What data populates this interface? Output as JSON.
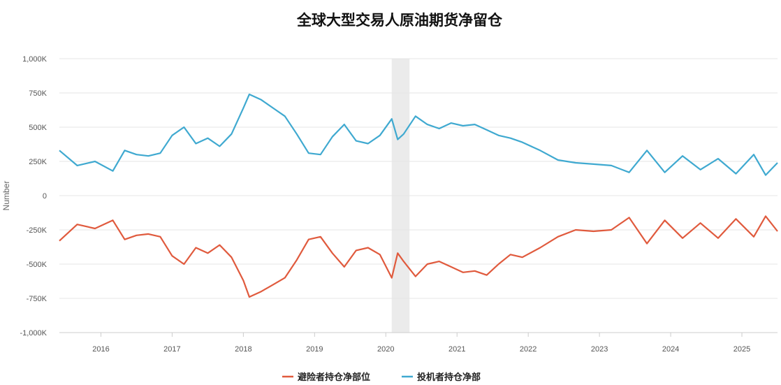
{
  "chart_data": {
    "type": "line",
    "title": "全球大型交易人原油期货净留仓",
    "ylabel": "Number",
    "xlabel": "",
    "ylim": [
      -1000000,
      1000000
    ],
    "xlim": [
      "2015-06",
      "2025-07"
    ],
    "y_ticks": [
      -1000000,
      -750000,
      -500000,
      -250000,
      0,
      250000,
      500000,
      750000,
      1000000
    ],
    "y_tick_labels": [
      "-1,000K",
      "-750K",
      "-500K",
      "-250K",
      "0",
      "250K",
      "500K",
      "750K",
      "1,000K"
    ],
    "x_ticks": [
      2016,
      2017,
      2018,
      2019,
      2020,
      2021,
      2022,
      2023,
      2024,
      2025
    ],
    "x_tick_labels": [
      "2016",
      "2017",
      "2018",
      "2019",
      "2020",
      "2021",
      "2022",
      "2023",
      "2024",
      "2025"
    ],
    "grid": "horizontal",
    "legend_position": "bottom-center",
    "shaded_period": [
      "2020-02",
      "2020-05"
    ],
    "series": [
      {
        "name": "避险者持仓净部位",
        "color": "#e05a3d",
        "x": [
          "2015-06",
          "2015-09",
          "2015-12",
          "2016-03",
          "2016-05",
          "2016-07",
          "2016-09",
          "2016-11",
          "2017-01",
          "2017-03",
          "2017-05",
          "2017-07",
          "2017-09",
          "2017-11",
          "2018-01",
          "2018-02",
          "2018-04",
          "2018-06",
          "2018-08",
          "2018-10",
          "2018-12",
          "2019-02",
          "2019-04",
          "2019-06",
          "2019-08",
          "2019-10",
          "2019-12",
          "2020-02",
          "2020-03",
          "2020-04",
          "2020-06",
          "2020-08",
          "2020-10",
          "2020-12",
          "2021-02",
          "2021-04",
          "2021-06",
          "2021-08",
          "2021-10",
          "2021-12",
          "2022-03",
          "2022-06",
          "2022-09",
          "2022-12",
          "2023-03",
          "2023-06",
          "2023-09",
          "2023-12",
          "2024-03",
          "2024-06",
          "2024-09",
          "2024-12",
          "2025-03",
          "2025-05",
          "2025-07"
        ],
        "values": [
          -330000,
          -210000,
          -240000,
          -180000,
          -320000,
          -290000,
          -280000,
          -300000,
          -440000,
          -500000,
          -380000,
          -420000,
          -360000,
          -450000,
          -620000,
          -740000,
          -700000,
          -650000,
          -600000,
          -470000,
          -320000,
          -300000,
          -420000,
          -520000,
          -400000,
          -380000,
          -430000,
          -600000,
          -420000,
          -480000,
          -590000,
          -500000,
          -480000,
          -520000,
          -560000,
          -550000,
          -580000,
          -500000,
          -430000,
          -450000,
          -380000,
          -300000,
          -250000,
          -260000,
          -250000,
          -160000,
          -350000,
          -180000,
          -310000,
          -200000,
          -310000,
          -170000,
          -300000,
          -150000,
          -260000
        ]
      },
      {
        "name": "投机者持仓净部",
        "color": "#3fa9d0",
        "x": [
          "2015-06",
          "2015-09",
          "2015-12",
          "2016-03",
          "2016-05",
          "2016-07",
          "2016-09",
          "2016-11",
          "2017-01",
          "2017-03",
          "2017-05",
          "2017-07",
          "2017-09",
          "2017-11",
          "2018-01",
          "2018-02",
          "2018-04",
          "2018-06",
          "2018-08",
          "2018-10",
          "2018-12",
          "2019-02",
          "2019-04",
          "2019-06",
          "2019-08",
          "2019-10",
          "2019-12",
          "2020-02",
          "2020-03",
          "2020-04",
          "2020-06",
          "2020-08",
          "2020-10",
          "2020-12",
          "2021-02",
          "2021-04",
          "2021-06",
          "2021-08",
          "2021-10",
          "2021-12",
          "2022-03",
          "2022-06",
          "2022-09",
          "2022-12",
          "2023-03",
          "2023-06",
          "2023-09",
          "2023-12",
          "2024-03",
          "2024-06",
          "2024-09",
          "2024-12",
          "2025-03",
          "2025-05",
          "2025-07"
        ],
        "values": [
          330000,
          220000,
          250000,
          180000,
          330000,
          300000,
          290000,
          310000,
          440000,
          500000,
          380000,
          420000,
          360000,
          450000,
          640000,
          740000,
          700000,
          640000,
          580000,
          450000,
          310000,
          300000,
          430000,
          520000,
          400000,
          380000,
          440000,
          560000,
          410000,
          450000,
          580000,
          520000,
          490000,
          530000,
          510000,
          520000,
          480000,
          440000,
          420000,
          390000,
          330000,
          260000,
          240000,
          230000,
          220000,
          170000,
          330000,
          170000,
          290000,
          190000,
          270000,
          160000,
          300000,
          150000,
          240000
        ]
      }
    ]
  }
}
